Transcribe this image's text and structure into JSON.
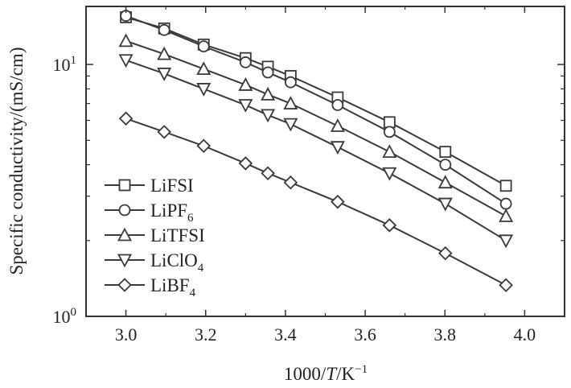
{
  "chart_data": {
    "type": "line",
    "xlabel": {
      "pre": "1000/",
      "var": "T",
      "post": "/K",
      "sup": "−1"
    },
    "ylabel": "Specific conductivity/(mS/cm)",
    "xlim": [
      2.9,
      4.1
    ],
    "ylim": [
      1.0,
      17.0
    ],
    "yscale": "log",
    "x_ticks": [
      "3.0",
      "3.2",
      "3.4",
      "3.6",
      "3.8",
      "4.0"
    ],
    "y_ticks": [
      {
        "value": 1,
        "base": "10",
        "exp": "0"
      },
      {
        "value": 10,
        "base": "10",
        "exp": "1"
      }
    ],
    "grid": false,
    "legend_position": "lower-left",
    "series": [
      {
        "name": "LiFSI",
        "label_main": "LiFSI",
        "label_sub": "",
        "marker": "square",
        "x": [
          3.0,
          3.096,
          3.195,
          3.3,
          3.356,
          3.413,
          3.531,
          3.661,
          3.801,
          3.953
        ],
        "y": [
          15.4,
          13.9,
          12.0,
          10.6,
          9.8,
          9.0,
          7.4,
          5.9,
          4.5,
          3.3
        ]
      },
      {
        "name": "LiPF6",
        "label_main": "LiPF",
        "label_sub": "6",
        "marker": "circle",
        "x": [
          3.0,
          3.096,
          3.195,
          3.3,
          3.356,
          3.413,
          3.531,
          3.661,
          3.801,
          3.953
        ],
        "y": [
          15.6,
          13.7,
          11.8,
          10.2,
          9.3,
          8.5,
          6.9,
          5.4,
          4.0,
          2.8
        ]
      },
      {
        "name": "LiTFSI",
        "label_main": "LiTFSI",
        "label_sub": "",
        "marker": "triangle-up",
        "x": [
          3.0,
          3.096,
          3.195,
          3.3,
          3.356,
          3.413,
          3.531,
          3.661,
          3.801,
          3.953
        ],
        "y": [
          12.4,
          11.0,
          9.6,
          8.3,
          7.6,
          7.0,
          5.7,
          4.5,
          3.4,
          2.5
        ]
      },
      {
        "name": "LiClO4",
        "label_main": "LiClO",
        "label_sub": "4",
        "marker": "triangle-down",
        "x": [
          3.0,
          3.096,
          3.195,
          3.3,
          3.356,
          3.413,
          3.531,
          3.661,
          3.801,
          3.953
        ],
        "y": [
          10.4,
          9.2,
          8.0,
          6.9,
          6.3,
          5.8,
          4.7,
          3.7,
          2.8,
          2.0
        ]
      },
      {
        "name": "LiBF4",
        "label_main": "LiBF",
        "label_sub": "4",
        "marker": "diamond",
        "x": [
          3.0,
          3.096,
          3.195,
          3.3,
          3.356,
          3.413,
          3.531,
          3.661,
          3.801,
          3.953
        ],
        "y": [
          6.1,
          5.4,
          4.75,
          4.05,
          3.7,
          3.4,
          2.85,
          2.3,
          1.78,
          1.33
        ]
      }
    ]
  }
}
